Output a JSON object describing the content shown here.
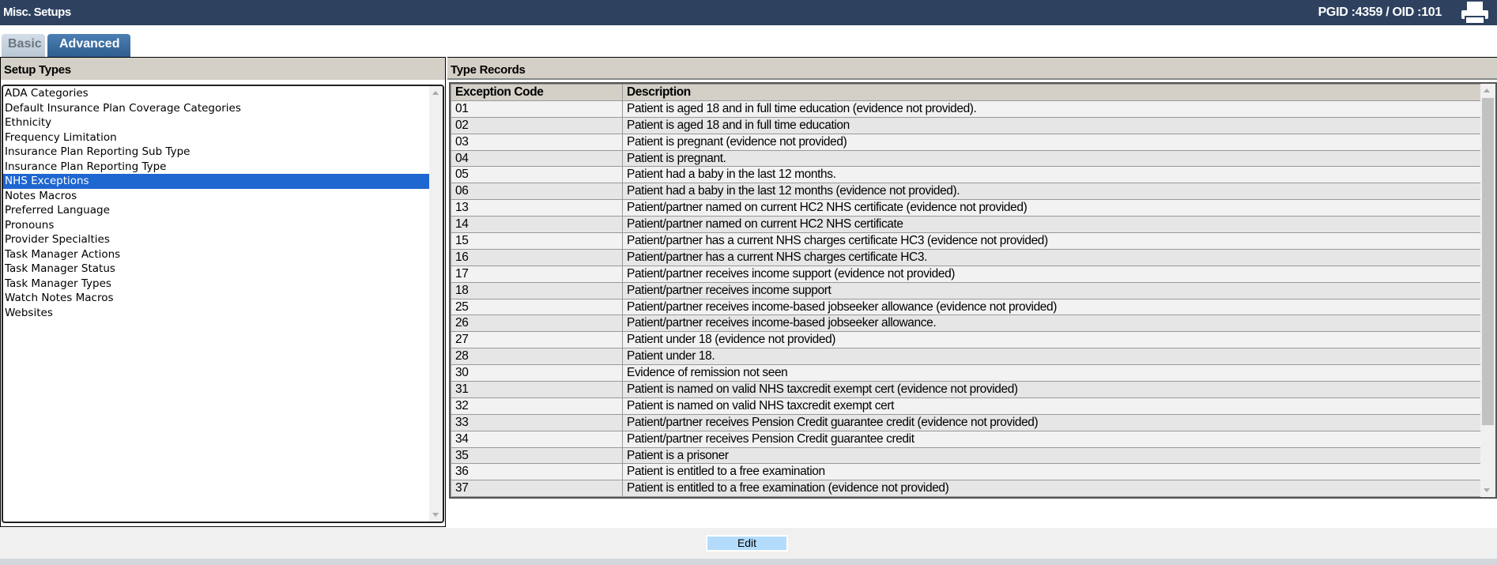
{
  "header": {
    "title": "Misc. Setups",
    "ids": "PGID :4359  /  OID :101",
    "print_icon": "printer-icon"
  },
  "tabs": [
    {
      "label": "Basic",
      "active": false
    },
    {
      "label": "Advanced",
      "active": true
    }
  ],
  "setup_types": {
    "title": "Setup Types",
    "selected": "NHS Exceptions",
    "items": [
      "ADA Categories",
      "Default Insurance Plan Coverage Categories",
      "Ethnicity",
      "Frequency Limitation",
      "Insurance Plan Reporting Sub Type",
      "Insurance Plan Reporting Type",
      "NHS Exceptions",
      "Notes Macros",
      "Preferred Language",
      "Pronouns",
      "Provider Specialties",
      "Task Manager Actions",
      "Task Manager Status",
      "Task Manager Types",
      "Watch Notes Macros",
      "Websites"
    ]
  },
  "type_records": {
    "title": "Type Records",
    "columns": [
      "Exception Code",
      "Description"
    ],
    "rows": [
      [
        "01",
        "Patient is aged 18 and in full time education (evidence not provided)."
      ],
      [
        "02",
        "Patient is aged 18 and in full time education"
      ],
      [
        "03",
        "Patient is pregnant (evidence not provided)"
      ],
      [
        "04",
        "Patient is pregnant."
      ],
      [
        "05",
        "Patient had a baby in the last 12 months."
      ],
      [
        "06",
        "Patient had a baby in the last 12 months (evidence not provided)."
      ],
      [
        "13",
        "Patient/partner named on current HC2 NHS certificate (evidence not provided)"
      ],
      [
        "14",
        "Patient/partner named on current HC2 NHS certificate"
      ],
      [
        "15",
        "Patient/partner has a current NHS charges certificate HC3 (evidence not provided)"
      ],
      [
        "16",
        "Patient/partner has a current NHS charges certificate HC3."
      ],
      [
        "17",
        "Patient/partner receives income support (evidence not provided)"
      ],
      [
        "18",
        "Patient/partner receives income support"
      ],
      [
        "25",
        "Patient/partner receives income-based jobseeker allowance (evidence not provided)"
      ],
      [
        "26",
        "Patient/partner receives income-based jobseeker allowance."
      ],
      [
        "27",
        "Patient under 18 (evidence not provided)"
      ],
      [
        "28",
        "Patient under 18."
      ],
      [
        "30",
        "Evidence of remission not seen"
      ],
      [
        "31",
        "Patient is named on valid NHS taxcredit exempt cert (evidence not provided)"
      ],
      [
        "32",
        "Patient is named on valid NHS taxcredit exempt cert"
      ],
      [
        "33",
        "Patient/partner receives Pension Credit guarantee credit (evidence not provided)"
      ],
      [
        "34",
        "Patient/partner receives Pension Credit guarantee credit"
      ],
      [
        "35",
        "Patient is a prisoner"
      ],
      [
        "36",
        "Patient is entitled to a free examination"
      ],
      [
        "37",
        "Patient is entitled to a free examination (evidence not provided)"
      ]
    ]
  },
  "footer": {
    "edit_label": "Edit"
  }
}
